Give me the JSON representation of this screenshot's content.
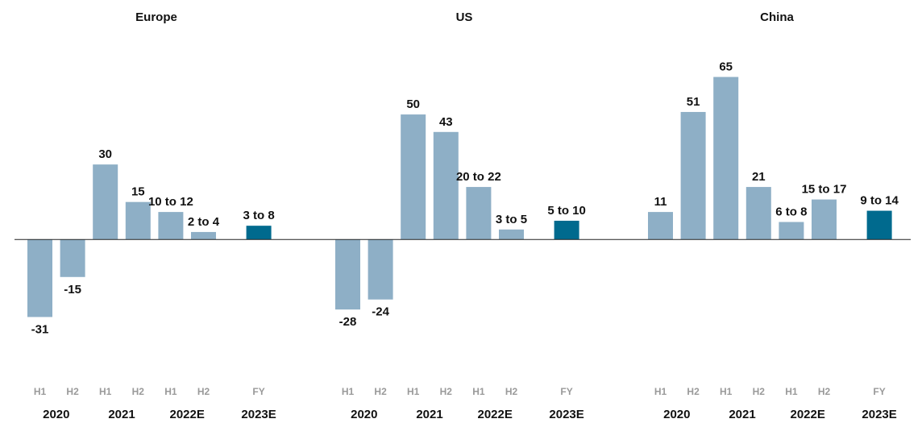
{
  "chart_data": [
    {
      "type": "bar",
      "title": "Europe",
      "groups": [
        {
          "label": "2020",
          "categories": [
            "H1",
            "H2"
          ]
        },
        {
          "label": "2021",
          "categories": [
            "H1",
            "H2"
          ]
        },
        {
          "label": "2022E",
          "categories": [
            "H1",
            "H2"
          ]
        },
        {
          "label": "2023E",
          "categories": [
            "FY"
          ]
        }
      ],
      "values": [
        -31,
        -15,
        30,
        15,
        11,
        3,
        5.5
      ],
      "value_labels": [
        "-31",
        "-15",
        "30",
        "15",
        "10 to 12",
        "2 to 4",
        "3 to 8"
      ],
      "colors": [
        "#8eafc6",
        "#8eafc6",
        "#8eafc6",
        "#8eafc6",
        "#8eafc6",
        "#8eafc6",
        "#006a8e"
      ],
      "ylim": [
        -46,
        70
      ]
    },
    {
      "type": "bar",
      "title": "US",
      "groups": [
        {
          "label": "2020",
          "categories": [
            "H1",
            "H2"
          ]
        },
        {
          "label": "2021",
          "categories": [
            "H1",
            "H2"
          ]
        },
        {
          "label": "2022E",
          "categories": [
            "H1",
            "H2"
          ]
        },
        {
          "label": "2023E",
          "categories": [
            "FY"
          ]
        }
      ],
      "values": [
        -28,
        -24,
        50,
        43,
        21,
        4,
        7.5
      ],
      "value_labels": [
        "-28",
        "-24",
        "50",
        "43",
        "20 to 22",
        "3 to 5",
        "5 to 10"
      ],
      "colors": [
        "#8eafc6",
        "#8eafc6",
        "#8eafc6",
        "#8eafc6",
        "#8eafc6",
        "#8eafc6",
        "#006a8e"
      ],
      "ylim": [
        -46,
        70
      ]
    },
    {
      "type": "bar",
      "title": "China",
      "groups": [
        {
          "label": "2020",
          "categories": [
            "H1",
            "H2"
          ]
        },
        {
          "label": "2021",
          "categories": [
            "H1",
            "H2"
          ]
        },
        {
          "label": "2022E",
          "categories": [
            "H1",
            "H2"
          ]
        },
        {
          "label": "2023E",
          "categories": [
            "FY"
          ]
        }
      ],
      "values": [
        11,
        51,
        65,
        21,
        7,
        16,
        11.5
      ],
      "value_labels": [
        "11",
        "51",
        "65",
        "21",
        "6 to 8",
        "15 to 17",
        "9 to 14"
      ],
      "colors": [
        "#8eafc6",
        "#8eafc6",
        "#8eafc6",
        "#8eafc6",
        "#8eafc6",
        "#8eafc6",
        "#006a8e"
      ],
      "ylim": [
        -46,
        70
      ]
    }
  ]
}
